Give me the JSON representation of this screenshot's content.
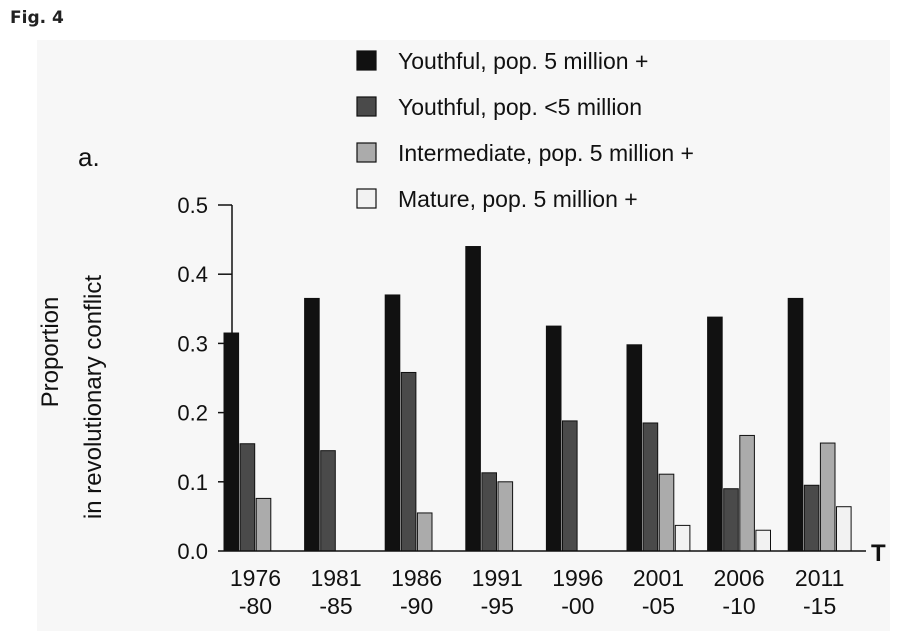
{
  "figure_label": "Fig. 4",
  "panel_label": "a.",
  "chart_data": {
    "type": "bar",
    "ylabel_line1": "Proportion",
    "ylabel_line2": "in revolutionary conflict",
    "x_end_label": "T",
    "ylim": [
      0,
      0.5
    ],
    "yticks": [
      "0.0",
      "0.1",
      "0.2",
      "0.3",
      "0.4",
      "0.5"
    ],
    "ytick_values": [
      0,
      0.1,
      0.2,
      0.3,
      0.4,
      0.5
    ],
    "categories": [
      {
        "line1": "1976",
        "line2": "-80"
      },
      {
        "line1": "1981",
        "line2": "-85"
      },
      {
        "line1": "1986",
        "line2": "-90"
      },
      {
        "line1": "1991",
        "line2": "-95"
      },
      {
        "line1": "1996",
        "line2": "-00"
      },
      {
        "line1": "2001",
        "line2": "-05"
      },
      {
        "line1": "2006",
        "line2": "-10"
      },
      {
        "line1": "2011",
        "line2": "-15"
      }
    ],
    "series": [
      {
        "name": "Youthful, pop. 5 million +",
        "color": "#111111",
        "values": [
          0.315,
          0.365,
          0.37,
          0.44,
          0.325,
          0.298,
          0.338,
          0.365
        ]
      },
      {
        "name": "Youthful, pop. <5 million",
        "color": "#4a4a4a",
        "values": [
          0.155,
          0.145,
          0.258,
          0.113,
          0.188,
          0.185,
          0.09,
          0.095
        ]
      },
      {
        "name": "Intermediate, pop. 5 million +",
        "color": "#ababab",
        "values": [
          0.076,
          0.0,
          0.055,
          0.1,
          0.0,
          0.111,
          0.167,
          0.156
        ]
      },
      {
        "name": "Mature, pop. 5 million +",
        "color": "#f2f2f2",
        "values": [
          0.0,
          0.0,
          0.0,
          0.0,
          0.0,
          0.037,
          0.03,
          0.064
        ]
      }
    ],
    "legend_position": "top",
    "grid": false
  }
}
